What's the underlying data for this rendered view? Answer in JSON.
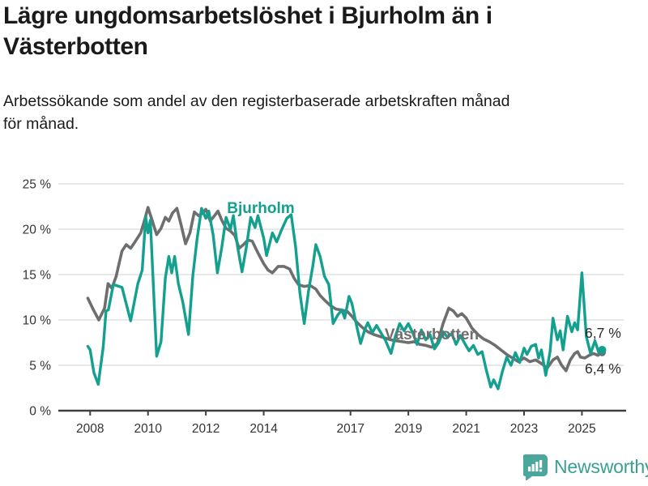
{
  "header": {
    "title": "Lägre ungdomsarbetslöshet i Bjurholm än i\nVästerbotten",
    "subtitle": "Arbetssökande som andel av den registerbaserade arbetskraften månad\nför månad."
  },
  "footer": {
    "brand": "Newsworthy"
  },
  "colors": {
    "bjurholm": "#13a08f",
    "vasterbotten": "#6e6e6e",
    "grid": "#d9d9d9",
    "axis": "#404040",
    "tick_text": "#333333",
    "end_label_text": "#2b2b2b",
    "logo": "#4ba79e",
    "brand_text": "#38a095"
  },
  "chart_data": {
    "type": "line",
    "title": "Lägre ungdomsarbetslöshet i Bjurholm än i Västerbotten",
    "subtitle": "Arbetssökande som andel av den registerbaserade arbetskraften månad för månad.",
    "xlabel": "",
    "ylabel": "",
    "grid": true,
    "legend_position": "inline-labels",
    "xlim": [
      2006.9,
      2026.5
    ],
    "ylim": [
      0,
      25
    ],
    "x_ticks": [
      {
        "v": 2008,
        "label": "2008"
      },
      {
        "v": 2010,
        "label": "2010"
      },
      {
        "v": 2012,
        "label": "2012"
      },
      {
        "v": 2014,
        "label": "2014"
      },
      {
        "v": 2017,
        "label": "2017"
      },
      {
        "v": 2019,
        "label": "2019"
      },
      {
        "v": 2021,
        "label": "2021"
      },
      {
        "v": 2023,
        "label": "2023"
      },
      {
        "v": 2025,
        "label": "2025"
      }
    ],
    "y_ticks": [
      {
        "v": 0,
        "label": "0 %"
      },
      {
        "v": 5,
        "label": "5 %"
      },
      {
        "v": 10,
        "label": "10 %"
      },
      {
        "v": 15,
        "label": "15 %"
      },
      {
        "v": 20,
        "label": "20 %"
      },
      {
        "v": 25,
        "label": "25 %"
      }
    ],
    "series": [
      {
        "name": "Bjurholm",
        "color": "#13a08f",
        "end_label": "6,7 %",
        "points": [
          [
            2007.92,
            7.1
          ],
          [
            2008.0,
            6.7
          ],
          [
            2008.13,
            4.2
          ],
          [
            2008.28,
            2.9
          ],
          [
            2008.45,
            7.0
          ],
          [
            2008.55,
            11.0
          ],
          [
            2008.63,
            11.1
          ],
          [
            2008.8,
            13.9
          ],
          [
            2009.1,
            13.6
          ],
          [
            2009.4,
            9.9
          ],
          [
            2009.65,
            14.0
          ],
          [
            2009.8,
            15.5
          ],
          [
            2009.92,
            21.4
          ],
          [
            2010.0,
            19.6
          ],
          [
            2010.08,
            21.0
          ],
          [
            2010.3,
            6.0
          ],
          [
            2010.45,
            7.6
          ],
          [
            2010.6,
            14.6
          ],
          [
            2010.72,
            17.0
          ],
          [
            2010.82,
            15.2
          ],
          [
            2010.92,
            17.0
          ],
          [
            2011.05,
            14.0
          ],
          [
            2011.2,
            12.0
          ],
          [
            2011.4,
            8.4
          ],
          [
            2011.55,
            14.9
          ],
          [
            2011.7,
            19.0
          ],
          [
            2011.85,
            22.3
          ],
          [
            2012.0,
            21.2
          ],
          [
            2012.1,
            22.0
          ],
          [
            2012.25,
            19.4
          ],
          [
            2012.4,
            15.2
          ],
          [
            2012.55,
            18.0
          ],
          [
            2012.7,
            21.3
          ],
          [
            2012.85,
            20.0
          ],
          [
            2012.95,
            21.5
          ],
          [
            2013.1,
            18.0
          ],
          [
            2013.25,
            15.3
          ],
          [
            2013.4,
            18.0
          ],
          [
            2013.55,
            21.3
          ],
          [
            2013.7,
            20.2
          ],
          [
            2013.8,
            21.5
          ],
          [
            2014.0,
            19.0
          ],
          [
            2014.1,
            17.1
          ],
          [
            2014.3,
            19.6
          ],
          [
            2014.45,
            18.6
          ],
          [
            2014.6,
            19.8
          ],
          [
            2014.8,
            21.2
          ],
          [
            2014.95,
            21.6
          ],
          [
            2015.1,
            18.1
          ],
          [
            2015.25,
            13.0
          ],
          [
            2015.4,
            9.6
          ],
          [
            2015.55,
            13.2
          ],
          [
            2015.7,
            16.0
          ],
          [
            2015.8,
            18.3
          ],
          [
            2015.95,
            17.0
          ],
          [
            2016.1,
            14.8
          ],
          [
            2016.25,
            13.9
          ],
          [
            2016.4,
            9.6
          ],
          [
            2016.55,
            10.5
          ],
          [
            2016.7,
            11.1
          ],
          [
            2016.8,
            10.2
          ],
          [
            2016.95,
            12.6
          ],
          [
            2017.05,
            11.8
          ],
          [
            2017.2,
            9.5
          ],
          [
            2017.35,
            7.4
          ],
          [
            2017.5,
            9.0
          ],
          [
            2017.6,
            9.7
          ],
          [
            2017.75,
            8.6
          ],
          [
            2017.9,
            9.4
          ],
          [
            2018.05,
            8.6
          ],
          [
            2018.2,
            7.8
          ],
          [
            2018.4,
            6.3
          ],
          [
            2018.55,
            8.2
          ],
          [
            2018.7,
            9.6
          ],
          [
            2018.85,
            8.8
          ],
          [
            2019.0,
            9.6
          ],
          [
            2019.15,
            8.6
          ],
          [
            2019.3,
            7.3
          ],
          [
            2019.45,
            8.9
          ],
          [
            2019.6,
            7.8
          ],
          [
            2019.75,
            8.4
          ],
          [
            2019.9,
            6.8
          ],
          [
            2020.05,
            7.5
          ],
          [
            2020.2,
            8.7
          ],
          [
            2020.35,
            8.1
          ],
          [
            2020.5,
            8.5
          ],
          [
            2020.65,
            7.3
          ],
          [
            2020.8,
            8.3
          ],
          [
            2020.95,
            7.4
          ],
          [
            2021.1,
            6.6
          ],
          [
            2021.25,
            7.2
          ],
          [
            2021.4,
            6.2
          ],
          [
            2021.55,
            6.5
          ],
          [
            2021.7,
            4.4
          ],
          [
            2021.85,
            2.6
          ],
          [
            2021.95,
            3.4
          ],
          [
            2022.1,
            2.4
          ],
          [
            2022.25,
            4.3
          ],
          [
            2022.4,
            5.9
          ],
          [
            2022.55,
            5.0
          ],
          [
            2022.7,
            6.4
          ],
          [
            2022.85,
            5.3
          ],
          [
            2023.0,
            6.9
          ],
          [
            2023.1,
            6.2
          ],
          [
            2023.25,
            7.1
          ],
          [
            2023.4,
            7.3
          ],
          [
            2023.5,
            5.8
          ],
          [
            2023.6,
            6.7
          ],
          [
            2023.75,
            3.9
          ],
          [
            2023.9,
            6.5
          ],
          [
            2024.0,
            10.2
          ],
          [
            2024.15,
            7.8
          ],
          [
            2024.25,
            8.8
          ],
          [
            2024.35,
            6.7
          ],
          [
            2024.5,
            10.4
          ],
          [
            2024.65,
            8.7
          ],
          [
            2024.75,
            9.7
          ],
          [
            2024.85,
            8.9
          ],
          [
            2025.0,
            15.2
          ],
          [
            2025.15,
            8.2
          ],
          [
            2025.3,
            6.3
          ],
          [
            2025.45,
            7.7
          ],
          [
            2025.6,
            6.2
          ],
          [
            2025.7,
            6.7
          ]
        ]
      },
      {
        "name": "Västerbotten",
        "color": "#6e6e6e",
        "end_label": "6,4 %",
        "points": [
          [
            2007.92,
            12.4
          ],
          [
            2008.1,
            11.2
          ],
          [
            2008.3,
            10.0
          ],
          [
            2008.5,
            11.3
          ],
          [
            2008.62,
            14.0
          ],
          [
            2008.75,
            13.5
          ],
          [
            2008.9,
            14.8
          ],
          [
            2009.1,
            17.6
          ],
          [
            2009.25,
            18.3
          ],
          [
            2009.4,
            17.9
          ],
          [
            2009.55,
            18.6
          ],
          [
            2009.75,
            19.6
          ],
          [
            2009.9,
            21.2
          ],
          [
            2010.0,
            22.4
          ],
          [
            2010.15,
            20.9
          ],
          [
            2010.3,
            19.4
          ],
          [
            2010.45,
            20.1
          ],
          [
            2010.6,
            21.3
          ],
          [
            2010.72,
            20.9
          ],
          [
            2010.85,
            21.8
          ],
          [
            2011.0,
            22.3
          ],
          [
            2011.15,
            20.4
          ],
          [
            2011.3,
            18.4
          ],
          [
            2011.45,
            19.6
          ],
          [
            2011.6,
            21.9
          ],
          [
            2011.75,
            21.5
          ],
          [
            2011.9,
            21.8
          ],
          [
            2012.0,
            22.2
          ],
          [
            2012.15,
            20.9
          ],
          [
            2012.3,
            21.5
          ],
          [
            2012.42,
            22.0
          ],
          [
            2012.55,
            21.0
          ],
          [
            2012.7,
            20.1
          ],
          [
            2012.85,
            19.8
          ],
          [
            2013.0,
            19.3
          ],
          [
            2013.15,
            17.9
          ],
          [
            2013.3,
            18.3
          ],
          [
            2013.45,
            18.8
          ],
          [
            2013.6,
            18.7
          ],
          [
            2013.8,
            17.4
          ],
          [
            2014.0,
            16.2
          ],
          [
            2014.15,
            15.5
          ],
          [
            2014.3,
            15.2
          ],
          [
            2014.5,
            15.9
          ],
          [
            2014.7,
            15.9
          ],
          [
            2014.9,
            15.6
          ],
          [
            2015.05,
            14.6
          ],
          [
            2015.2,
            13.9
          ],
          [
            2015.4,
            13.7
          ],
          [
            2015.6,
            13.8
          ],
          [
            2015.8,
            13.4
          ],
          [
            2015.95,
            12.7
          ],
          [
            2016.1,
            12.2
          ],
          [
            2016.3,
            11.6
          ],
          [
            2016.5,
            11.2
          ],
          [
            2016.7,
            11.1
          ],
          [
            2016.9,
            10.9
          ],
          [
            2017.05,
            10.4
          ],
          [
            2017.2,
            9.8
          ],
          [
            2017.4,
            9.2
          ],
          [
            2017.6,
            8.7
          ],
          [
            2017.8,
            8.4
          ],
          [
            2018.0,
            8.2
          ],
          [
            2018.2,
            8.0
          ],
          [
            2018.4,
            7.8
          ],
          [
            2018.6,
            7.7
          ],
          [
            2018.8,
            7.6
          ],
          [
            2019.0,
            7.5
          ],
          [
            2019.2,
            7.6
          ],
          [
            2019.4,
            7.3
          ],
          [
            2019.6,
            7.2
          ],
          [
            2019.8,
            7.0
          ],
          [
            2020.0,
            7.4
          ],
          [
            2020.2,
            9.6
          ],
          [
            2020.4,
            11.3
          ],
          [
            2020.55,
            11.0
          ],
          [
            2020.7,
            10.4
          ],
          [
            2020.85,
            10.7
          ],
          [
            2021.0,
            10.2
          ],
          [
            2021.2,
            9.1
          ],
          [
            2021.4,
            8.4
          ],
          [
            2021.6,
            7.9
          ],
          [
            2021.8,
            7.6
          ],
          [
            2022.0,
            7.2
          ],
          [
            2022.2,
            6.7
          ],
          [
            2022.4,
            6.2
          ],
          [
            2022.6,
            5.8
          ],
          [
            2022.8,
            5.4
          ],
          [
            2023.0,
            5.8
          ],
          [
            2023.2,
            5.4
          ],
          [
            2023.4,
            5.6
          ],
          [
            2023.6,
            5.2
          ],
          [
            2023.8,
            4.7
          ],
          [
            2024.0,
            5.6
          ],
          [
            2024.15,
            5.9
          ],
          [
            2024.3,
            5.0
          ],
          [
            2024.45,
            4.4
          ],
          [
            2024.6,
            5.6
          ],
          [
            2024.75,
            6.3
          ],
          [
            2024.85,
            6.5
          ],
          [
            2024.95,
            5.9
          ],
          [
            2025.1,
            5.8
          ],
          [
            2025.25,
            6.1
          ],
          [
            2025.4,
            6.3
          ],
          [
            2025.55,
            6.1
          ],
          [
            2025.7,
            6.4
          ]
        ]
      }
    ]
  }
}
